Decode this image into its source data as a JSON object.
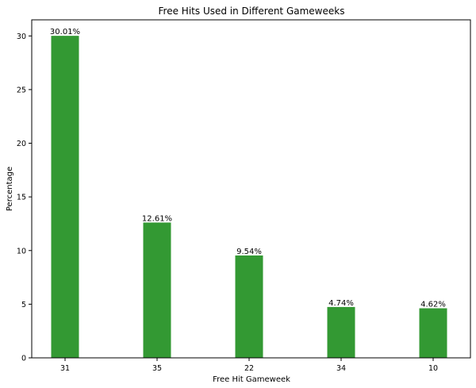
{
  "chart_data": {
    "type": "bar",
    "title": "Free Hits Used in Different Gameweeks",
    "xlabel": "Free Hit Gameweek",
    "ylabel": "Percentage",
    "categories": [
      "31",
      "35",
      "22",
      "34",
      "10"
    ],
    "values": [
      30.01,
      12.61,
      9.54,
      4.74,
      4.62
    ],
    "data_labels": [
      "30.01%",
      "12.61%",
      "9.54%",
      "4.74%",
      "4.62%"
    ],
    "ylim": [
      0,
      31.5
    ],
    "yticks": [
      0,
      5,
      10,
      15,
      20,
      25,
      30
    ],
    "grid": false,
    "bar_color": "#339933"
  }
}
